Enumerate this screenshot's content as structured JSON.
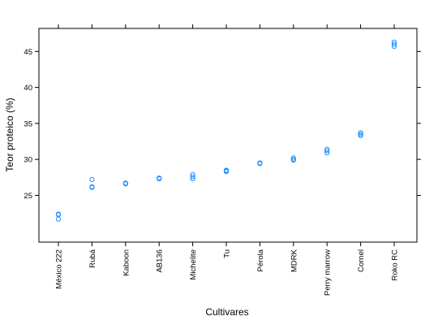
{
  "chart_data": {
    "type": "scatter",
    "title": "",
    "xlabel": "Cultivares",
    "ylabel": "Teor proteico (%)",
    "ylim": [
      18.5,
      48.2
    ],
    "yticks": [
      25,
      30,
      35,
      40,
      45
    ],
    "grid": false,
    "categories": [
      "México 222",
      "Rubá",
      "Kaboon",
      "AB136",
      "Michelite",
      "Tu",
      "Pérola",
      "MDRK",
      "Perry marrow",
      "Cornel",
      "Roko RC"
    ],
    "series": [
      {
        "values": [
          [
            21.7,
            22.3,
            22.4
          ],
          [
            26.1,
            26.2,
            27.2
          ],
          [
            26.6,
            26.7,
            26.7
          ],
          [
            27.3,
            27.4,
            27.4
          ],
          [
            27.3,
            27.6,
            27.9
          ],
          [
            28.3,
            28.4,
            28.5
          ],
          [
            29.4,
            29.5,
            29.5
          ],
          [
            29.9,
            30.0,
            30.2
          ],
          [
            30.9,
            31.2,
            31.4
          ],
          [
            33.3,
            33.5,
            33.7
          ],
          [
            45.7,
            46.0,
            46.3
          ]
        ]
      }
    ],
    "colors": {
      "points": "#1f8fff",
      "axis": "#000000"
    }
  }
}
